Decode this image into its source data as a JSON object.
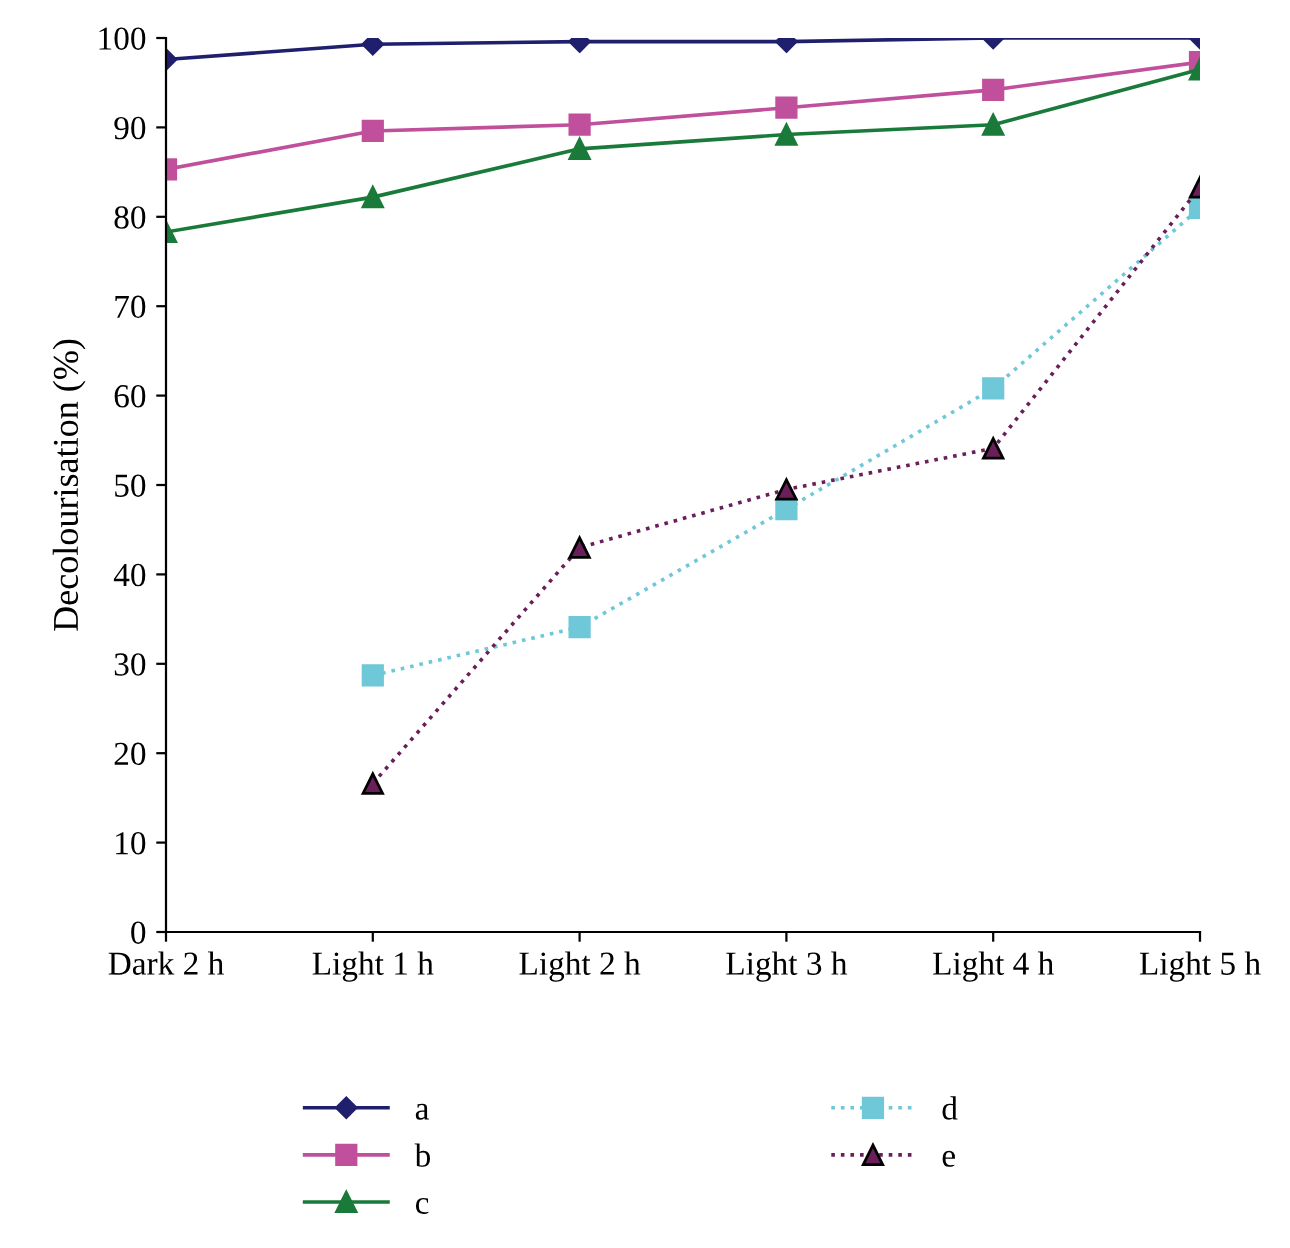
{
  "chart_data": {
    "type": "line",
    "ylabel": "Decolourisation (%)",
    "categories": [
      "Dark 2 h",
      "Light 1 h",
      "Light 2 h",
      "Light 3 h",
      "Light 4 h",
      "Light 5 h"
    ],
    "series": [
      {
        "name": "a",
        "color": "#1f1f6e",
        "marker": "diamond",
        "line_style": "solid",
        "values": [
          97.6,
          99.3,
          99.6,
          99.6,
          100,
          100
        ]
      },
      {
        "name": "b",
        "color": "#c0509c",
        "marker": "square",
        "line_style": "solid",
        "values": [
          85.3,
          89.6,
          90.3,
          92.2,
          94.2,
          97.3
        ]
      },
      {
        "name": "c",
        "color": "#1a7a3a",
        "marker": "triangle",
        "line_style": "solid",
        "values": [
          78.3,
          82.2,
          87.6,
          89.2,
          90.3,
          96.5
        ]
      },
      {
        "name": "d",
        "color": "#6fc8d8",
        "marker": "square",
        "line_style": "dotted",
        "values": [
          null,
          28.7,
          34.1,
          47.3,
          60.8,
          81.0
        ]
      },
      {
        "name": "e",
        "color": "#6a1f5a",
        "marker": "triangle",
        "line_style": "dotted",
        "values": [
          null,
          16.6,
          43.0,
          49.5,
          54.1,
          83.3
        ]
      }
    ],
    "ylim": [
      0,
      100
    ],
    "yticks": [
      0,
      10,
      20,
      30,
      40,
      50,
      60,
      70,
      80,
      90,
      100
    ],
    "grid": false,
    "legend": "bottom"
  }
}
